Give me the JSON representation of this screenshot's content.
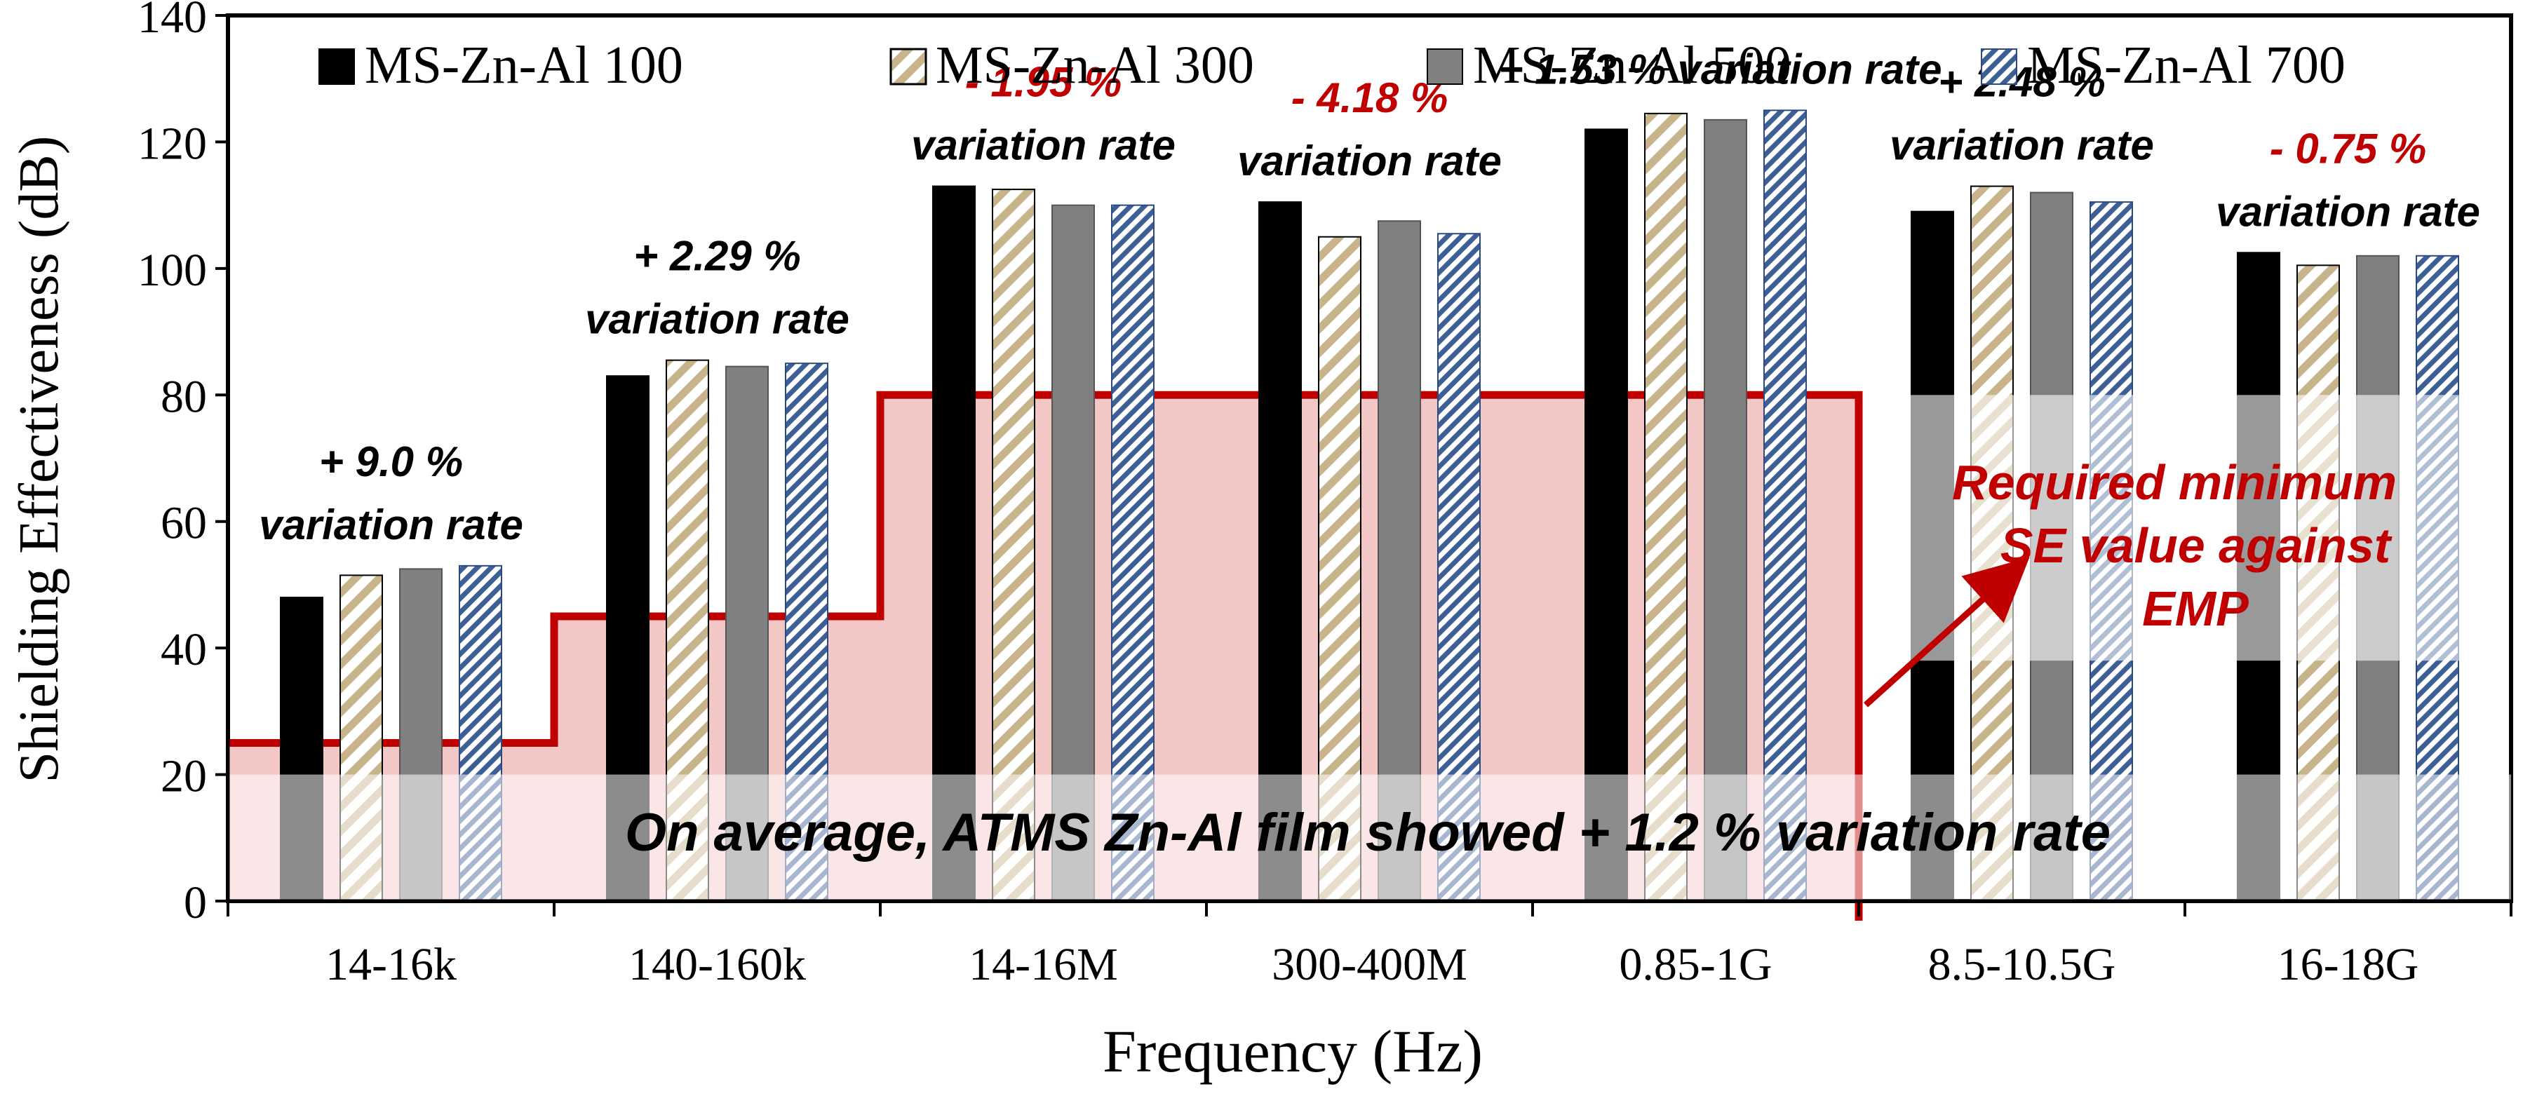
{
  "chart_data": {
    "type": "bar",
    "title": "",
    "xlabel": "Frequency (Hz)",
    "ylabel": "Shielding Effectiveness (dB)",
    "ylim": [
      0,
      140
    ],
    "yticks": [
      0,
      20,
      40,
      60,
      80,
      100,
      120,
      140
    ],
    "grid": false,
    "legend_position": "top",
    "categories": [
      "14-16k",
      "140-160k",
      "14-16M",
      "300-400M",
      "0.85-1G",
      "8.5-10.5G",
      "16-18G"
    ],
    "series": [
      {
        "name": "MS-Zn-Al 100",
        "pattern": "solid-black",
        "values": [
          48,
          83,
          113,
          110.5,
          122,
          109,
          102.5
        ]
      },
      {
        "name": "MS-Zn-Al 300",
        "pattern": "tan-diagonal",
        "values": [
          51.5,
          85.5,
          112.5,
          105,
          124.5,
          113,
          100.5
        ]
      },
      {
        "name": "MS-Zn-Al 500",
        "pattern": "solid-gray",
        "values": [
          52.5,
          84.5,
          110,
          107.5,
          123.5,
          112,
          102
        ]
      },
      {
        "name": "MS-Zn-Al 700",
        "pattern": "blue-diagonal",
        "values": [
          53,
          85,
          110,
          105.5,
          125,
          110.5,
          102
        ]
      }
    ],
    "variation_annotations": [
      {
        "category": "14-16k",
        "value_text": "+ 9.0 %",
        "label_text": "variation rate",
        "color": "#000000"
      },
      {
        "category": "140-160k",
        "value_text": "+ 2.29 %",
        "label_text": "variation rate",
        "color": "#000000"
      },
      {
        "category": "14-16M",
        "value_text": "- 1.95 %",
        "label_text": "variation rate",
        "color": "#c00000"
      },
      {
        "category": "300-400M",
        "value_text": "- 4.18 %",
        "label_text": "variation rate",
        "color": "#c00000"
      },
      {
        "category": "0.85-1G",
        "value_text": "+ 1.53 % variation rate",
        "label_text": "",
        "color": "#000000"
      },
      {
        "category": "8.5-10.5G",
        "value_text": "+ 2.48 %",
        "label_text": "variation rate",
        "color": "#000000"
      },
      {
        "category": "16-18G",
        "value_text": "- 0.75 %",
        "label_text": "variation rate",
        "color": "#c00000"
      }
    ],
    "required_minimum_se": {
      "label_lines": [
        "Required minimum",
        "SE value against",
        "EMP"
      ],
      "color": "#c00000",
      "fill": "#f4c7c7",
      "steps": [
        {
          "category": "14-16k",
          "value": 25
        },
        {
          "category": "140-160k",
          "value": 45
        },
        {
          "category": "14-16M",
          "value": 80
        },
        {
          "category": "300-400M",
          "value": 80
        },
        {
          "category": "0.85-1G",
          "value": 80
        }
      ]
    },
    "summary_text": "On average, ATMS Zn-Al film showed + 1.2 % variation rate"
  }
}
